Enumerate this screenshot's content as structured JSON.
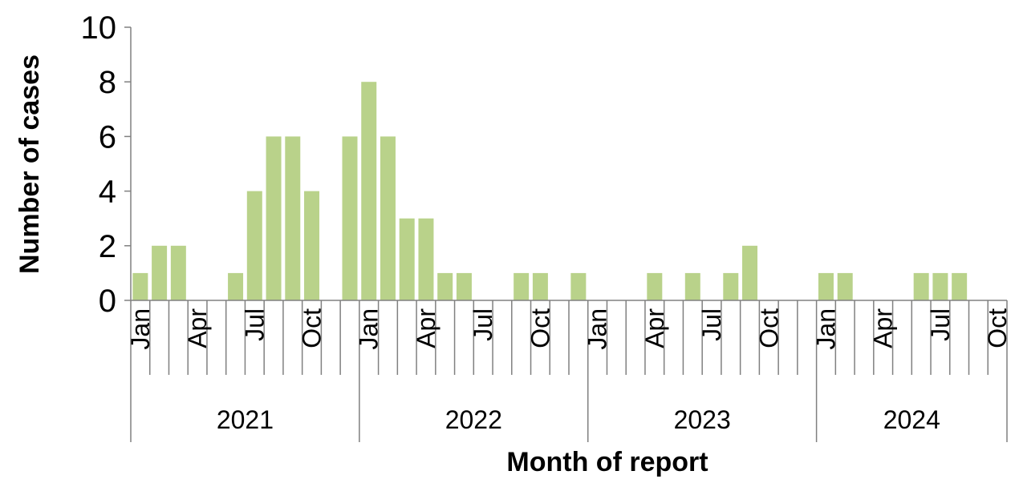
{
  "chart_data": {
    "type": "bar",
    "xlabel": "Month of report",
    "ylabel": "Number of cases",
    "ylim": [
      0,
      10
    ],
    "yticks": [
      0,
      2,
      4,
      6,
      8,
      10
    ],
    "bar_color": "#b9d28a",
    "grid": false,
    "month_labels": [
      "Jan",
      "Apr",
      "Jul",
      "Oct"
    ],
    "years": [
      "2021",
      "2022",
      "2023",
      "2024"
    ],
    "categories": [
      "2021-01",
      "2021-02",
      "2021-03",
      "2021-04",
      "2021-05",
      "2021-06",
      "2021-07",
      "2021-08",
      "2021-09",
      "2021-10",
      "2021-11",
      "2021-12",
      "2022-01",
      "2022-02",
      "2022-03",
      "2022-04",
      "2022-05",
      "2022-06",
      "2022-07",
      "2022-08",
      "2022-09",
      "2022-10",
      "2022-11",
      "2022-12",
      "2023-01",
      "2023-02",
      "2023-03",
      "2023-04",
      "2023-05",
      "2023-06",
      "2023-07",
      "2023-08",
      "2023-09",
      "2023-10",
      "2023-11",
      "2023-12",
      "2024-01",
      "2024-02",
      "2024-03",
      "2024-04",
      "2024-05",
      "2024-06",
      "2024-07",
      "2024-08",
      "2024-09",
      "2024-10"
    ],
    "values": [
      1,
      2,
      2,
      0,
      0,
      1,
      4,
      6,
      6,
      4,
      0,
      6,
      8,
      6,
      3,
      3,
      1,
      1,
      0,
      0,
      1,
      1,
      0,
      1,
      0,
      0,
      0,
      1,
      0,
      1,
      0,
      1,
      2,
      0,
      0,
      0,
      1,
      1,
      0,
      0,
      0,
      1,
      1,
      1,
      0,
      0
    ]
  }
}
